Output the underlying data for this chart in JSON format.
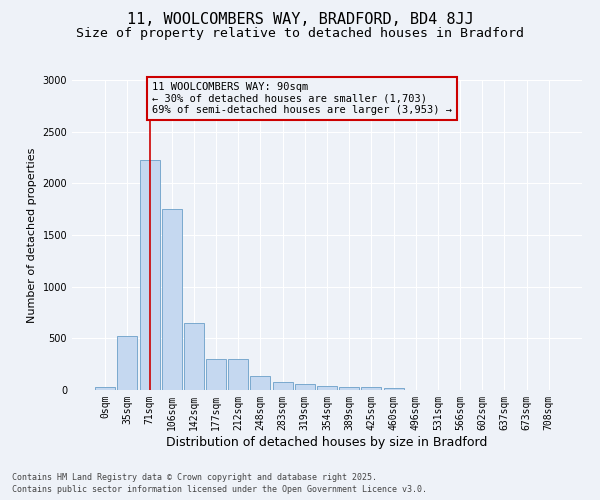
{
  "title": "11, WOOLCOMBERS WAY, BRADFORD, BD4 8JJ",
  "subtitle": "Size of property relative to detached houses in Bradford",
  "xlabel": "Distribution of detached houses by size in Bradford",
  "ylabel": "Number of detached properties",
  "categories": [
    "0sqm",
    "35sqm",
    "71sqm",
    "106sqm",
    "142sqm",
    "177sqm",
    "212sqm",
    "248sqm",
    "283sqm",
    "319sqm",
    "354sqm",
    "389sqm",
    "425sqm",
    "460sqm",
    "496sqm",
    "531sqm",
    "566sqm",
    "602sqm",
    "637sqm",
    "673sqm",
    "708sqm"
  ],
  "bar_heights": [
    25,
    525,
    2225,
    1750,
    650,
    300,
    300,
    140,
    80,
    60,
    40,
    30,
    25,
    15,
    0,
    0,
    0,
    0,
    0,
    0,
    0
  ],
  "bar_color": "#c5d8f0",
  "bar_edge_color": "#6a9fc8",
  "vline_color": "#cc0000",
  "ylim": [
    0,
    3000
  ],
  "yticks": [
    0,
    500,
    1000,
    1500,
    2000,
    2500,
    3000
  ],
  "annotation_text": "11 WOOLCOMBERS WAY: 90sqm\n← 30% of detached houses are smaller (1,703)\n69% of semi-detached houses are larger (3,953) →",
  "annotation_box_color": "#cc0000",
  "footer_line1": "Contains HM Land Registry data © Crown copyright and database right 2025.",
  "footer_line2": "Contains public sector information licensed under the Open Government Licence v3.0.",
  "background_color": "#eef2f8",
  "grid_color": "#ffffff",
  "title_fontsize": 11,
  "subtitle_fontsize": 9.5,
  "tick_fontsize": 7,
  "ylabel_fontsize": 8,
  "xlabel_fontsize": 9,
  "annotation_fontsize": 7.5,
  "footer_fontsize": 6
}
